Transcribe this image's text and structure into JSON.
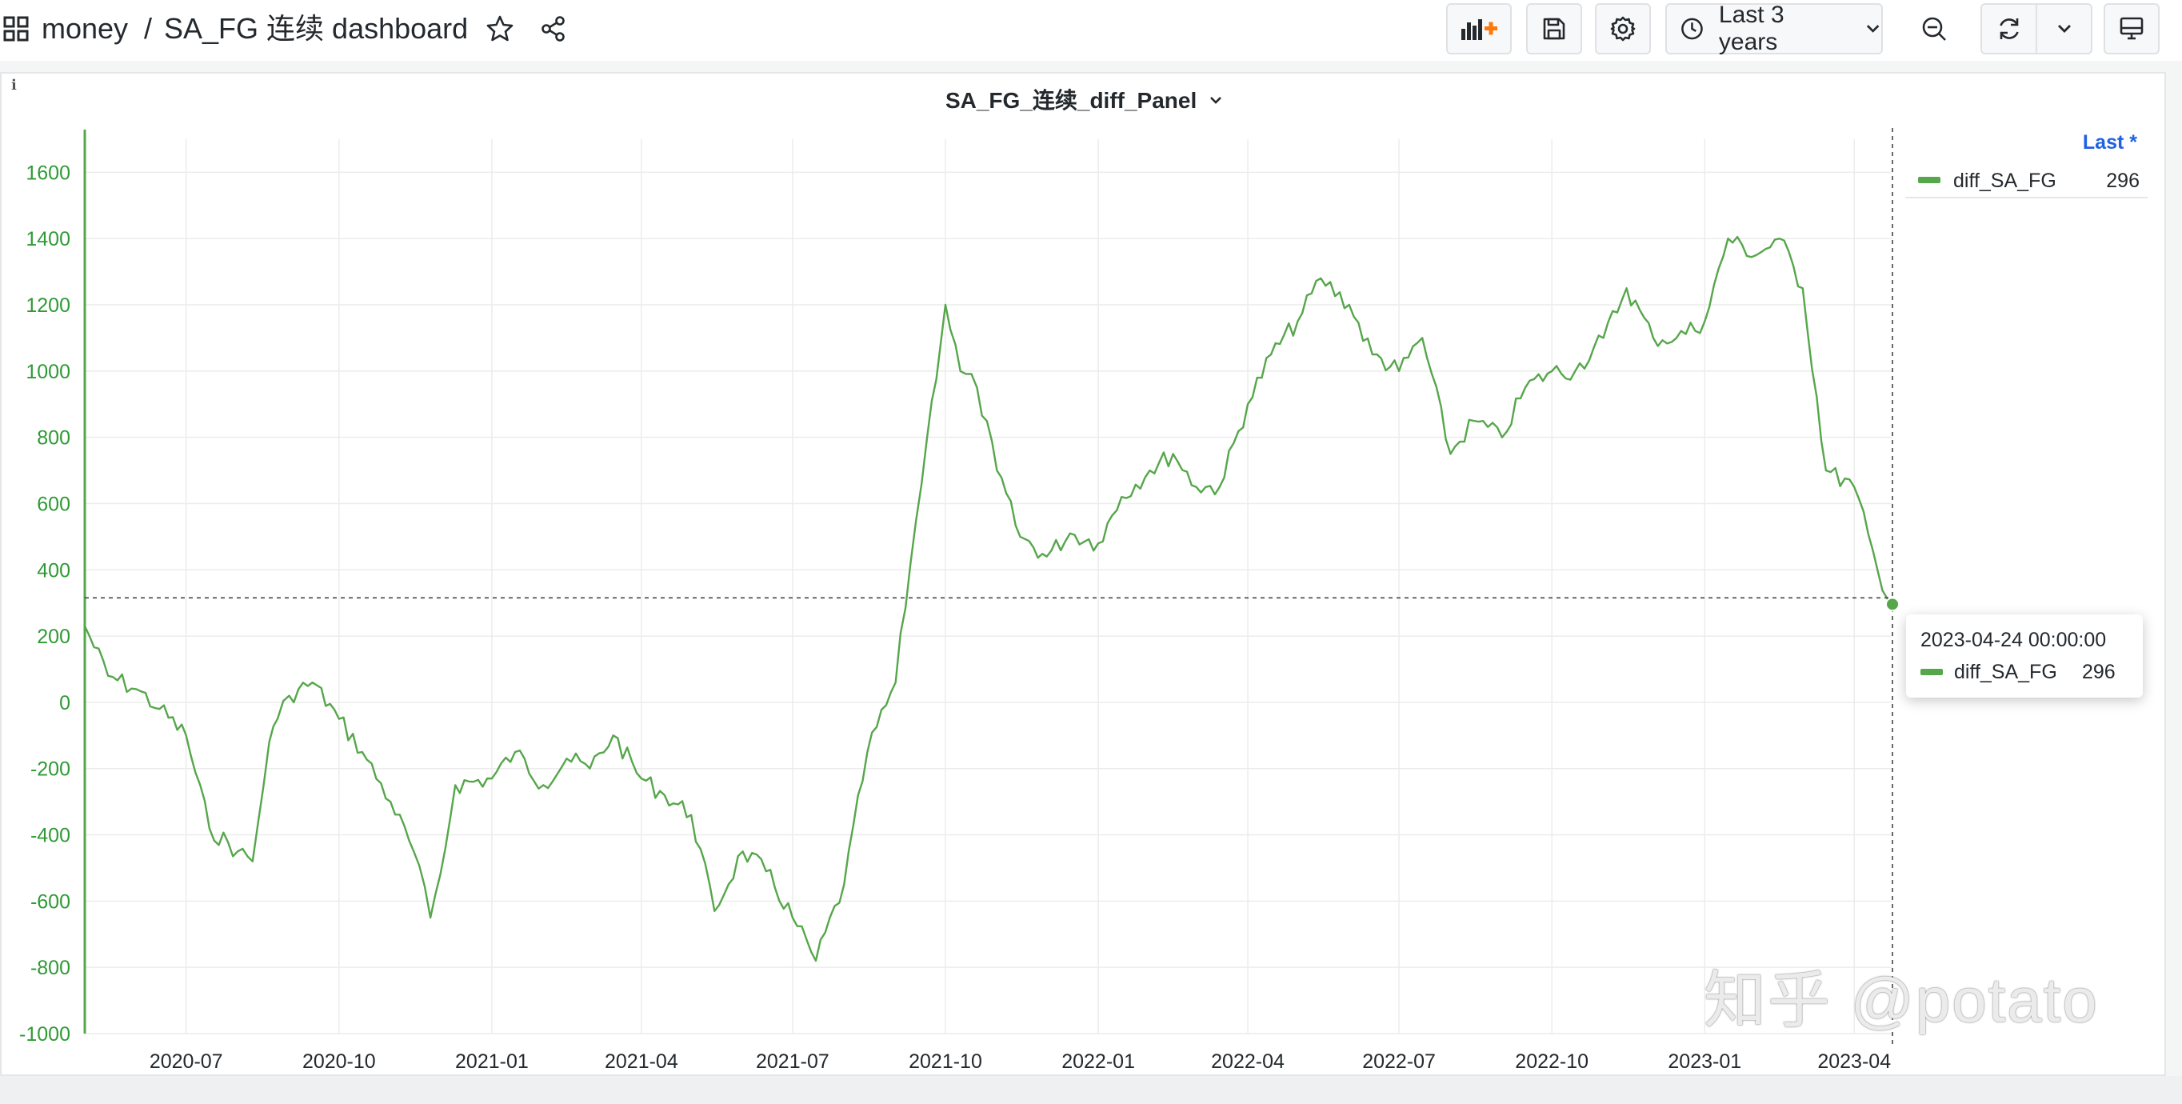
{
  "header": {
    "folder": "money",
    "separator": "/",
    "dashboard_title": "SA_FG 连续 dashboard",
    "time_range": "Last 3 years"
  },
  "panel": {
    "title": "SA_FG_连续_diff_Panel",
    "info_icon": "i"
  },
  "legend": {
    "header": "Last *",
    "series_name": "diff_SA_FG",
    "series_value": "296",
    "series_color": "#56a64b"
  },
  "tooltip": {
    "time": "2023-04-24 00:00:00",
    "series_name": "diff_SA_FG",
    "value": "296"
  },
  "watermark": "知乎 @potato",
  "chart_data": {
    "type": "line",
    "title": "SA_FG_连续_diff_Panel",
    "xlabel": "",
    "ylabel": "",
    "ylim": [
      -1000,
      1700
    ],
    "yticks": [
      1600,
      1400,
      1200,
      1000,
      800,
      600,
      400,
      200,
      0,
      -200,
      -400,
      -600,
      -800,
      -1000
    ],
    "xticks": [
      "2020-07",
      "2020-10",
      "2021-01",
      "2021-04",
      "2021-07",
      "2021-10",
      "2022-01",
      "2022-04",
      "2022-07",
      "2022-10",
      "2023-01",
      "2023-04"
    ],
    "grid": true,
    "legend_position": "right",
    "crosshair": {
      "x": "2023-04-24",
      "y": 296
    },
    "series": [
      {
        "name": "diff_SA_FG",
        "color": "#56a64b",
        "x": [
          "2020-05-01",
          "2020-05-15",
          "2020-06-01",
          "2020-06-15",
          "2020-07-01",
          "2020-07-15",
          "2020-08-01",
          "2020-08-10",
          "2020-08-20",
          "2020-08-25",
          "2020-09-01",
          "2020-09-15",
          "2020-10-01",
          "2020-10-15",
          "2020-11-01",
          "2020-11-15",
          "2020-11-25",
          "2020-12-01",
          "2020-12-10",
          "2021-01-01",
          "2021-01-15",
          "2021-02-01",
          "2021-02-15",
          "2021-03-01",
          "2021-03-15",
          "2021-04-01",
          "2021-04-15",
          "2021-05-01",
          "2021-05-15",
          "2021-06-01",
          "2021-06-15",
          "2021-07-01",
          "2021-07-15",
          "2021-08-01",
          "2021-08-15",
          "2021-09-01",
          "2021-09-10",
          "2021-09-20",
          "2021-10-01",
          "2021-10-10",
          "2021-10-20",
          "2021-11-01",
          "2021-11-15",
          "2021-12-01",
          "2021-12-15",
          "2022-01-01",
          "2022-01-15",
          "2022-02-01",
          "2022-02-15",
          "2022-03-01",
          "2022-03-15",
          "2022-04-01",
          "2022-04-15",
          "2022-05-01",
          "2022-05-15",
          "2022-06-01",
          "2022-06-15",
          "2022-07-01",
          "2022-07-15",
          "2022-08-01",
          "2022-08-15",
          "2022-09-01",
          "2022-09-15",
          "2022-10-01",
          "2022-10-15",
          "2022-11-01",
          "2022-11-15",
          "2022-12-01",
          "2022-12-15",
          "2023-01-01",
          "2023-01-15",
          "2023-02-01",
          "2023-02-15",
          "2023-03-01",
          "2023-03-15",
          "2023-04-01",
          "2023-04-15",
          "2023-04-24"
        ],
        "values": [
          230,
          80,
          40,
          -20,
          -100,
          -380,
          -450,
          -480,
          -120,
          -50,
          20,
          60,
          -50,
          -150,
          -300,
          -450,
          -650,
          -520,
          -250,
          -230,
          -150,
          -250,
          -170,
          -200,
          -100,
          -230,
          -280,
          -340,
          -630,
          -450,
          -510,
          -650,
          -780,
          -550,
          -150,
          60,
          420,
          800,
          1200,
          1000,
          950,
          700,
          500,
          440,
          510,
          480,
          620,
          700,
          750,
          650,
          650,
          900,
          1050,
          1150,
          1280,
          1200,
          1050,
          1000,
          1100,
          750,
          850,
          800,
          950,
          1000,
          1000,
          1100,
          1250,
          1100,
          1100,
          1150,
          1400,
          1350,
          1400,
          1250,
          700,
          650,
          400,
          296
        ]
      }
    ]
  }
}
